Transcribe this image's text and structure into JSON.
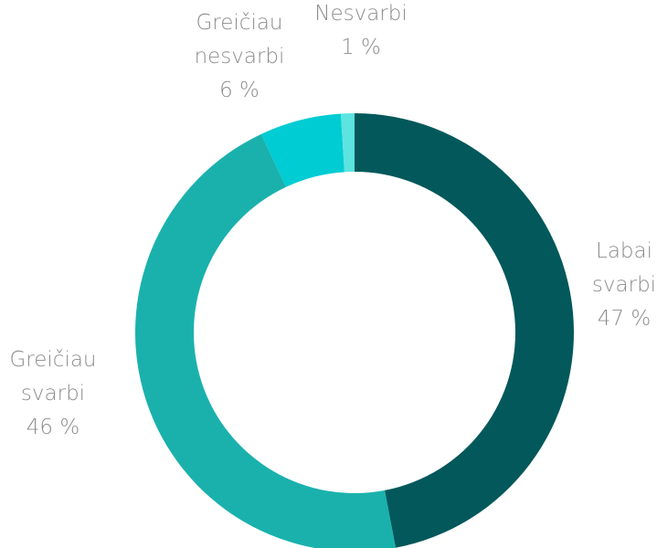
{
  "chart_data": {
    "type": "donut",
    "categories": [
      "Labai svarbi",
      "Greičiau svarbi",
      "Greičiau nesvarbi",
      "Nesvarbi"
    ],
    "values": [
      47,
      46,
      6,
      1
    ],
    "value_labels": [
      "47 %",
      "46 %",
      "6 %",
      "1 %"
    ],
    "colors": [
      "#02585a",
      "#1ab1ad",
      "#00ccd3",
      "#5de3e0"
    ]
  }
}
